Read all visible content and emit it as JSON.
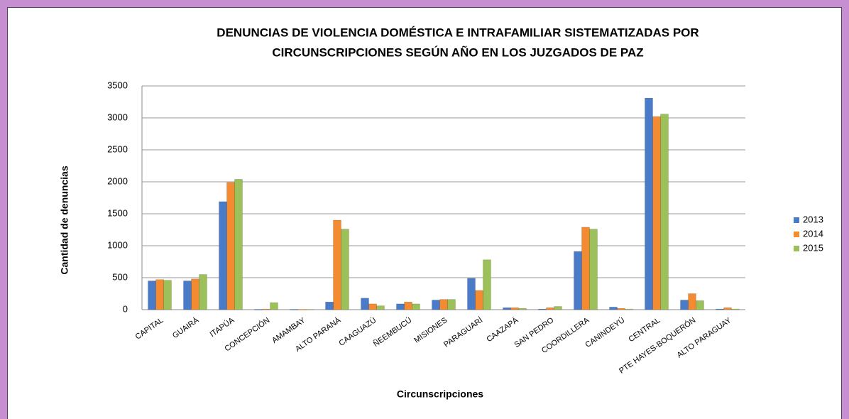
{
  "chart_data": {
    "type": "bar",
    "title": [
      "DENUNCIAS DE VIOLENCIA DOMÉSTICA E INTRAFAMILIAR SISTEMATIZADAS POR",
      "CIRCUNSCRIPCIONES SEGÚN AÑO EN LOS JUZGADOS DE PAZ"
    ],
    "x_label": "Circunscripciones",
    "y_label": "Cantidad de denuncias",
    "categories": [
      "CAPITAL",
      "GUAIRÁ",
      "ITAPÚA",
      "CONCEPCIÓN",
      "AMAMBAY",
      "ALTO PARANÁ",
      "CAAGUAZÚ",
      "ÑEEMBUCÚ",
      "MISIONES",
      "PARAGUARÍ",
      "CAAZAPÁ",
      "SAN PEDRO",
      "COORDILLERA",
      "CANINDEYÚ",
      "CENTRAL",
      "PTE HAYES-BOQUERÓN",
      "ALTO PARAGUAY"
    ],
    "series": [
      {
        "name": "2013",
        "color": "#4a7bc8",
        "values": [
          450,
          450,
          1690,
          5,
          5,
          120,
          180,
          90,
          150,
          490,
          30,
          10,
          910,
          40,
          3310,
          150,
          10
        ]
      },
      {
        "name": "2014",
        "color": "#f28b32",
        "values": [
          470,
          480,
          1990,
          10,
          5,
          1400,
          90,
          120,
          160,
          300,
          30,
          30,
          1290,
          20,
          3020,
          250,
          30
        ]
      },
      {
        "name": "2015",
        "color": "#9cc05a",
        "values": [
          460,
          550,
          2040,
          110,
          5,
          1260,
          60,
          90,
          160,
          780,
          20,
          50,
          1260,
          10,
          3060,
          140,
          10
        ]
      }
    ],
    "ylim": [
      0,
      3500
    ],
    "yticks": [
      0,
      500,
      1000,
      1500,
      2000,
      2500,
      3000,
      3500
    ],
    "grid": true,
    "legend": "right"
  }
}
